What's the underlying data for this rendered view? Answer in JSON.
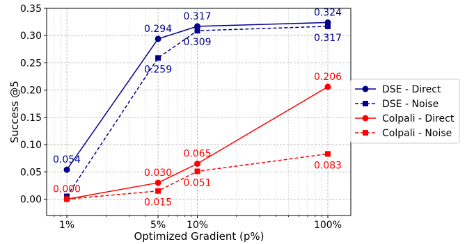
{
  "chart_data": {
    "type": "line",
    "xlabel": "Optimized Gradient (p%)",
    "ylabel": "Success @5",
    "x_scale": "log",
    "x": [
      1,
      5,
      10,
      100
    ],
    "xticks": [
      {
        "value": 1,
        "label": "1%"
      },
      {
        "value": 5,
        "label": "5%"
      },
      {
        "value": 10,
        "label": "10%"
      },
      {
        "value": 100,
        "label": "100%"
      }
    ],
    "xlim": [
      0.7,
      150
    ],
    "ylim": [
      -0.03,
      0.35
    ],
    "yticks": [
      0.0,
      0.05,
      0.1,
      0.15,
      0.2,
      0.25,
      0.3,
      0.35
    ],
    "ytick_labels": [
      "0.00",
      "0.05",
      "0.10",
      "0.15",
      "0.20",
      "0.25",
      "0.30",
      "0.35"
    ],
    "grid": true,
    "legend_position": "center-right, outside plot",
    "series": [
      {
        "name": "DSE - Direct",
        "color": "#00008b",
        "line": "solid",
        "marker": "circle",
        "values": [
          0.054,
          0.294,
          0.317,
          0.324
        ],
        "labels": [
          "0.054",
          "0.294",
          "0.317",
          "0.324"
        ],
        "label_pos": [
          "above",
          "above",
          "above",
          "above"
        ]
      },
      {
        "name": "DSE - Noise",
        "color": "#00008b",
        "line": "dashed",
        "marker": "square",
        "values": [
          0.005,
          0.259,
          0.309,
          0.317
        ],
        "labels": [
          "",
          "0.259",
          "0.309",
          "0.317"
        ],
        "label_pos": [
          "below",
          "below",
          "below",
          "below"
        ]
      },
      {
        "name": "Colpali - Direct",
        "color": "#ff0000",
        "line": "solid",
        "marker": "circle",
        "values": [
          0.0,
          0.03,
          0.065,
          0.206
        ],
        "labels": [
          "0.000",
          "0.030",
          "0.065",
          "0.206"
        ],
        "label_pos": [
          "above",
          "above",
          "above",
          "above"
        ]
      },
      {
        "name": "Colpali - Noise",
        "color": "#ff0000",
        "line": "dashed",
        "marker": "square",
        "values": [
          0.0,
          0.015,
          0.051,
          0.083
        ],
        "labels": [
          "",
          "0.015",
          "0.051",
          "0.083"
        ],
        "label_pos": [
          "below",
          "below",
          "below",
          "below"
        ]
      }
    ]
  }
}
